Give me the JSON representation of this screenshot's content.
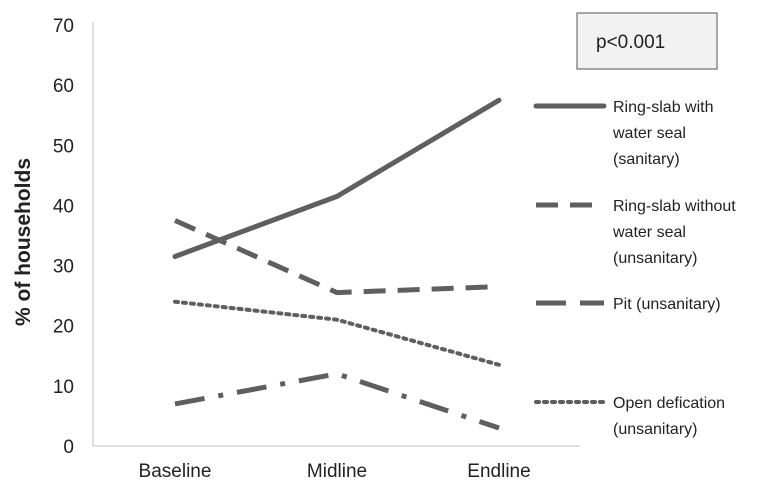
{
  "chart_data": {
    "type": "line",
    "categories": [
      "Baseline",
      "Midline",
      "Endline"
    ],
    "ylabel": "% of households",
    "ylim": [
      0,
      70
    ],
    "yticks": [
      0,
      10,
      20,
      30,
      40,
      50,
      60,
      70
    ],
    "grid": false,
    "legend_position": "right",
    "annotation": "p<0.001",
    "series": [
      {
        "name_lines": [
          "Ring-slab with",
          "water seal",
          "(sanitary)"
        ],
        "style": "solid",
        "values": [
          31.5,
          41.5,
          57.5
        ]
      },
      {
        "name_lines": [
          "Ring-slab without",
          "water seal",
          "(unsanitary)"
        ],
        "style": "dashed",
        "values": [
          37.5,
          25.5,
          26.5
        ]
      },
      {
        "name_lines": [
          "Pit (unsanitary)"
        ],
        "style": "longdashdot",
        "values": [
          7,
          12,
          3
        ]
      },
      {
        "name_lines": [
          "Open defication",
          "(unsanitary)"
        ],
        "style": "dotted",
        "values": [
          24,
          21,
          13.5
        ]
      }
    ],
    "color": "#5f5f5f"
  }
}
